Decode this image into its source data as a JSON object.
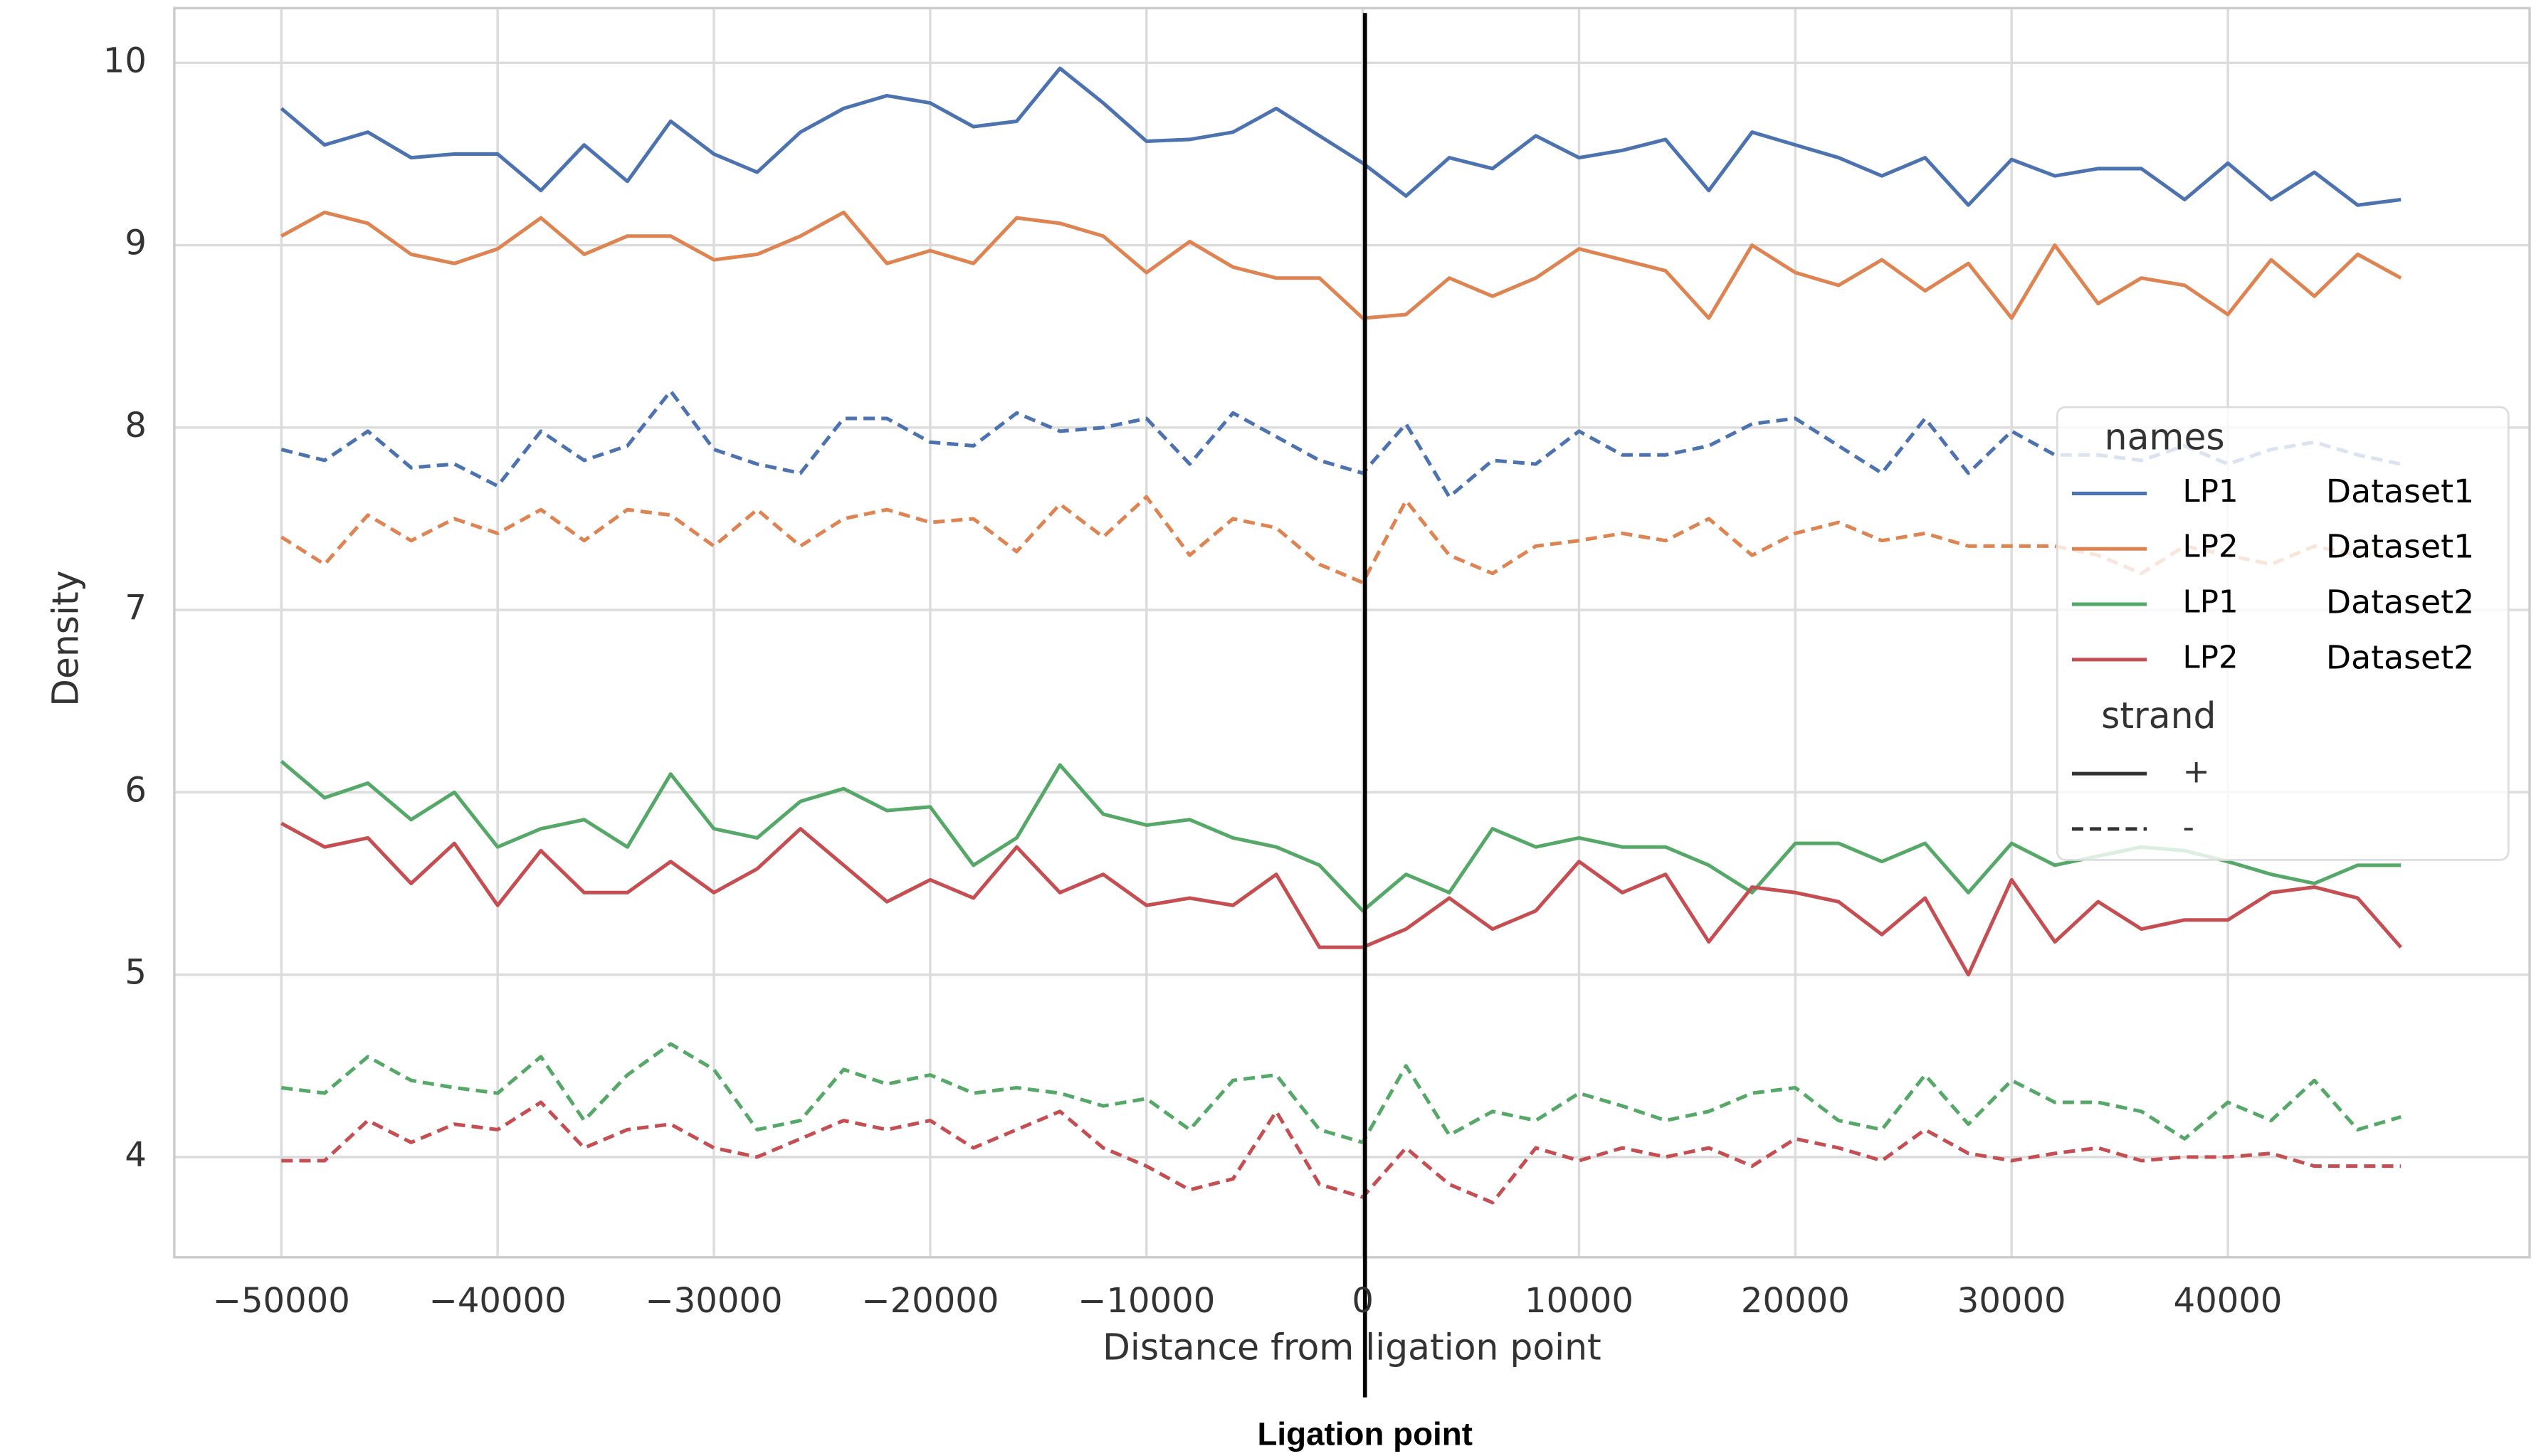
{
  "chart_data": {
    "type": "line",
    "xlabel": "Distance from ligation point",
    "ylabel": "Density",
    "annotation": "Ligation point",
    "legend_title": "names",
    "legend_strand_title": "strand",
    "strands": [
      "+",
      "-"
    ],
    "xlim": [
      -54950,
      53950
    ],
    "ylim": [
      3.45,
      10.3
    ],
    "xticks": [
      {
        "value": -50000,
        "label": "−50000"
      },
      {
        "value": -40000,
        "label": "−40000"
      },
      {
        "value": -30000,
        "label": "−30000"
      },
      {
        "value": -20000,
        "label": "−20000"
      },
      {
        "value": -10000,
        "label": "−10000"
      },
      0,
      10000,
      20000,
      30000,
      40000
    ],
    "yticks": [
      4,
      5,
      6,
      7,
      8,
      9,
      10
    ],
    "grid": true,
    "x": [
      -50000,
      -48000,
      -46000,
      -44000,
      -42000,
      -40000,
      -38000,
      -36000,
      -34000,
      -32000,
      -30000,
      -28000,
      -26000,
      -24000,
      -22000,
      -20000,
      -18000,
      -16000,
      -14000,
      -12000,
      -10000,
      -8000,
      -6000,
      -4000,
      -2000,
      0,
      2000,
      4000,
      6000,
      8000,
      10000,
      12000,
      14000,
      16000,
      18000,
      20000,
      22000,
      24000,
      26000,
      28000,
      30000,
      32000,
      34000,
      36000,
      38000,
      40000,
      42000,
      44000,
      46000,
      48000
    ],
    "series": [
      {
        "name": "LP1",
        "dataset": "Dataset1",
        "strand": "+",
        "color": "#4c72b0",
        "values": [
          9.75,
          9.55,
          9.62,
          9.48,
          9.5,
          9.5,
          9.3,
          9.55,
          9.35,
          9.68,
          9.5,
          9.4,
          9.62,
          9.75,
          9.82,
          9.78,
          9.65,
          9.68,
          9.97,
          9.78,
          9.57,
          9.58,
          9.62,
          9.75,
          9.6,
          9.45,
          9.27,
          9.48,
          9.42,
          9.6,
          9.48,
          9.52,
          9.58,
          9.3,
          9.62,
          9.55,
          9.48,
          9.38,
          9.48,
          9.22,
          9.47,
          9.38,
          9.42,
          9.42,
          9.25,
          9.45,
          9.25,
          9.4,
          9.22,
          9.25
        ]
      },
      {
        "name": "LP2",
        "dataset": "Dataset1",
        "strand": "+",
        "color": "#dd8452",
        "values": [
          9.05,
          9.18,
          9.12,
          8.95,
          8.9,
          8.98,
          9.15,
          8.95,
          9.05,
          9.05,
          8.92,
          8.95,
          9.05,
          9.18,
          8.9,
          8.97,
          8.9,
          9.15,
          9.12,
          9.05,
          8.85,
          9.02,
          8.88,
          8.82,
          8.82,
          8.6,
          8.62,
          8.82,
          8.72,
          8.82,
          8.98,
          8.92,
          8.86,
          8.6,
          9.0,
          8.85,
          8.78,
          8.92,
          8.75,
          8.9,
          8.6,
          9.0,
          8.68,
          8.82,
          8.78,
          8.62,
          8.92,
          8.72,
          8.95,
          8.82
        ]
      },
      {
        "name": "LP1",
        "dataset": "Dataset2",
        "strand": "+",
        "color": "#55a868",
        "values": [
          6.17,
          5.97,
          6.05,
          5.85,
          6.0,
          5.7,
          5.8,
          5.85,
          5.7,
          6.1,
          5.8,
          5.75,
          5.95,
          6.02,
          5.9,
          5.92,
          5.6,
          5.75,
          6.15,
          5.88,
          5.82,
          5.85,
          5.75,
          5.7,
          5.6,
          5.35,
          5.55,
          5.45,
          5.8,
          5.7,
          5.75,
          5.7,
          5.7,
          5.6,
          5.45,
          5.72,
          5.72,
          5.62,
          5.72,
          5.45,
          5.72,
          5.6,
          5.65,
          5.7,
          5.68,
          5.62,
          5.55,
          5.5,
          5.6,
          5.6
        ]
      },
      {
        "name": "LP2",
        "dataset": "Dataset2",
        "strand": "+",
        "color": "#c44e52",
        "values": [
          5.83,
          5.7,
          5.75,
          5.5,
          5.72,
          5.38,
          5.68,
          5.45,
          5.45,
          5.62,
          5.45,
          5.58,
          5.8,
          5.6,
          5.4,
          5.52,
          5.42,
          5.7,
          5.45,
          5.55,
          5.38,
          5.42,
          5.38,
          5.55,
          5.15,
          5.15,
          5.25,
          5.42,
          5.25,
          5.35,
          5.62,
          5.45,
          5.55,
          5.18,
          5.48,
          5.45,
          5.4,
          5.22,
          5.42,
          5.0,
          5.52,
          5.18,
          5.4,
          5.25,
          5.3,
          5.3,
          5.45,
          5.48,
          5.42,
          5.15
        ]
      },
      {
        "name": "LP1",
        "dataset": "Dataset1",
        "strand": "-",
        "color": "#4c72b0",
        "values": [
          7.88,
          7.82,
          7.98,
          7.78,
          7.8,
          7.68,
          7.98,
          7.82,
          7.9,
          8.2,
          7.88,
          7.8,
          7.75,
          8.05,
          8.05,
          7.92,
          7.9,
          8.08,
          7.98,
          8.0,
          8.05,
          7.8,
          8.08,
          7.95,
          7.82,
          7.75,
          8.02,
          7.62,
          7.82,
          7.8,
          7.98,
          7.85,
          7.85,
          7.9,
          8.02,
          8.05,
          7.9,
          7.75,
          8.05,
          7.75,
          7.98,
          7.85,
          7.85,
          7.82,
          7.9,
          7.8,
          7.88,
          7.92,
          7.85,
          7.8
        ]
      },
      {
        "name": "LP2",
        "dataset": "Dataset1",
        "strand": "-",
        "color": "#dd8452",
        "values": [
          7.4,
          7.25,
          7.52,
          7.38,
          7.5,
          7.42,
          7.55,
          7.38,
          7.55,
          7.52,
          7.35,
          7.55,
          7.35,
          7.5,
          7.55,
          7.48,
          7.5,
          7.32,
          7.58,
          7.4,
          7.62,
          7.3,
          7.5,
          7.45,
          7.25,
          7.15,
          7.6,
          7.3,
          7.2,
          7.35,
          7.38,
          7.42,
          7.38,
          7.5,
          7.3,
          7.42,
          7.48,
          7.38,
          7.42,
          7.35,
          7.35,
          7.35,
          7.3,
          7.2,
          7.35,
          7.3,
          7.25,
          7.35,
          7.3,
          7.3
        ]
      },
      {
        "name": "LP1",
        "dataset": "Dataset2",
        "strand": "-",
        "color": "#55a868",
        "values": [
          4.38,
          4.35,
          4.55,
          4.42,
          4.38,
          4.35,
          4.55,
          4.2,
          4.45,
          4.62,
          4.48,
          4.15,
          4.2,
          4.48,
          4.4,
          4.45,
          4.35,
          4.38,
          4.35,
          4.28,
          4.32,
          4.15,
          4.42,
          4.45,
          4.15,
          4.08,
          4.5,
          4.12,
          4.25,
          4.2,
          4.35,
          4.28,
          4.2,
          4.25,
          4.35,
          4.38,
          4.2,
          4.15,
          4.45,
          4.18,
          4.42,
          4.3,
          4.3,
          4.25,
          4.1,
          4.3,
          4.2,
          4.42,
          4.15,
          4.22
        ]
      },
      {
        "name": "LP2",
        "dataset": "Dataset2",
        "strand": "-",
        "color": "#c44e52",
        "values": [
          3.98,
          3.98,
          4.2,
          4.08,
          4.18,
          4.15,
          4.3,
          4.05,
          4.15,
          4.18,
          4.05,
          4.0,
          4.1,
          4.2,
          4.15,
          4.2,
          4.05,
          4.15,
          4.25,
          4.05,
          3.95,
          3.82,
          3.88,
          4.25,
          3.85,
          3.78,
          4.05,
          3.85,
          3.75,
          4.05,
          3.98,
          4.05,
          4.0,
          4.05,
          3.95,
          4.1,
          4.05,
          3.98,
          4.15,
          4.02,
          3.98,
          4.02,
          4.05,
          3.98,
          4.0,
          4.0,
          4.02,
          3.95,
          3.95,
          3.95
        ]
      }
    ]
  }
}
